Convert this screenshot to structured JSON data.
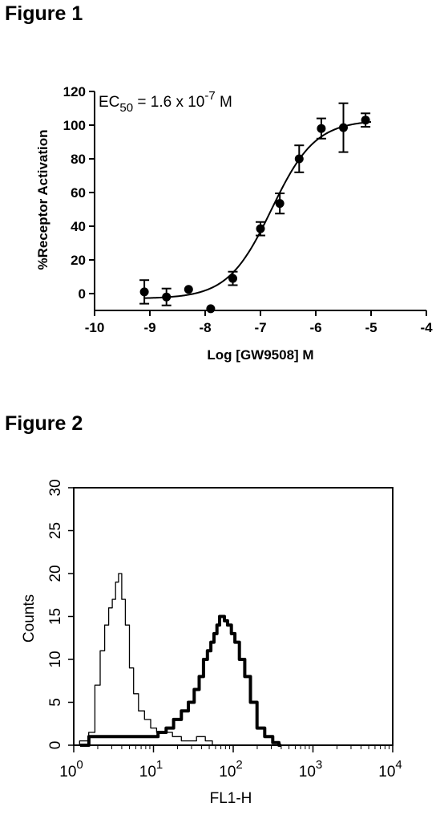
{
  "figures": {
    "fig1_title": "Figure 1",
    "fig2_title": "Figure 2"
  },
  "chart_data": [
    {
      "type": "scatter",
      "title": "",
      "annotation": {
        "prefix": "EC",
        "subscript": "50",
        "middle": " = 1.6 x 10",
        "superscript": "-7",
        "suffix": " M"
      },
      "xlabel": "Log [GW9508] M",
      "ylabel": "%Receptor Activation",
      "xlim": [
        -10,
        -4
      ],
      "ylim": [
        -10,
        120
      ],
      "xticks": [
        -10,
        -9,
        -8,
        -7,
        -6,
        -5,
        -4
      ],
      "yticks": [
        0,
        20,
        40,
        60,
        80,
        100,
        120
      ],
      "points": [
        {
          "x": -9.1,
          "y": 1,
          "err": 7
        },
        {
          "x": -8.7,
          "y": -2,
          "err": 5
        },
        {
          "x": -8.3,
          "y": 2.5,
          "err": 0
        },
        {
          "x": -7.9,
          "y": -9,
          "err": 0
        },
        {
          "x": -7.5,
          "y": 9,
          "err": 4
        },
        {
          "x": -7.0,
          "y": 38.5,
          "err": 4
        },
        {
          "x": -6.65,
          "y": 53.5,
          "err": 6
        },
        {
          "x": -6.3,
          "y": 80,
          "err": 8
        },
        {
          "x": -5.9,
          "y": 98,
          "err": 6
        },
        {
          "x": -5.5,
          "y": 98.5,
          "err": 14.5
        },
        {
          "x": -5.1,
          "y": 103,
          "err": 4
        }
      ],
      "fit": {
        "bottom": -3,
        "top": 103,
        "logEC50": -6.8,
        "hill": 1.1
      }
    },
    {
      "type": "line",
      "title": "",
      "xlabel": "FL1-H",
      "ylabel": "Counts",
      "x_scale": "log",
      "xlim": [
        1,
        10000
      ],
      "ylim": [
        0,
        30
      ],
      "xticks": [
        {
          "value": 1,
          "base": "10",
          "exp": "0"
        },
        {
          "value": 10,
          "base": "10",
          "exp": "1"
        },
        {
          "value": 100,
          "base": "10",
          "exp": "2"
        },
        {
          "value": 1000,
          "base": "10",
          "exp": "3"
        },
        {
          "value": 10000,
          "base": "10",
          "exp": "4"
        }
      ],
      "yticks": [
        "0",
        "5",
        "10",
        "15",
        "20",
        "25",
        "30"
      ],
      "series": [
        {
          "style": "thin",
          "x": [
            1.0,
            1.4,
            1.7,
            2.0,
            2.3,
            2.6,
            2.9,
            3.2,
            3.5,
            3.8,
            4.2,
            4.7,
            5.3,
            6.0,
            7.0,
            8.5,
            10,
            12,
            15,
            20,
            25,
            30,
            40,
            50,
            60
          ],
          "y": [
            0,
            0.5,
            1.5,
            7,
            11,
            14,
            16,
            17,
            19,
            20,
            17,
            14,
            9,
            6,
            4,
            3,
            2,
            1.5,
            1.5,
            1,
            0.5,
            0.5,
            1,
            0.5,
            0
          ]
        },
        {
          "style": "thick",
          "x": [
            1.2,
            2,
            3,
            5,
            8,
            10,
            13,
            16,
            20,
            25,
            30,
            35,
            40,
            45,
            50,
            55,
            60,
            65,
            70,
            75,
            80,
            90,
            100,
            110,
            130,
            150,
            180,
            220,
            280,
            350,
            400
          ],
          "y": [
            0,
            1,
            1,
            1,
            1,
            1,
            1.5,
            2,
            3,
            4,
            5,
            6.5,
            8,
            10,
            11,
            12,
            13,
            14,
            15,
            15,
            14.5,
            14,
            13,
            12,
            10,
            8,
            5,
            2,
            1,
            0.3,
            0
          ]
        }
      ]
    }
  ]
}
